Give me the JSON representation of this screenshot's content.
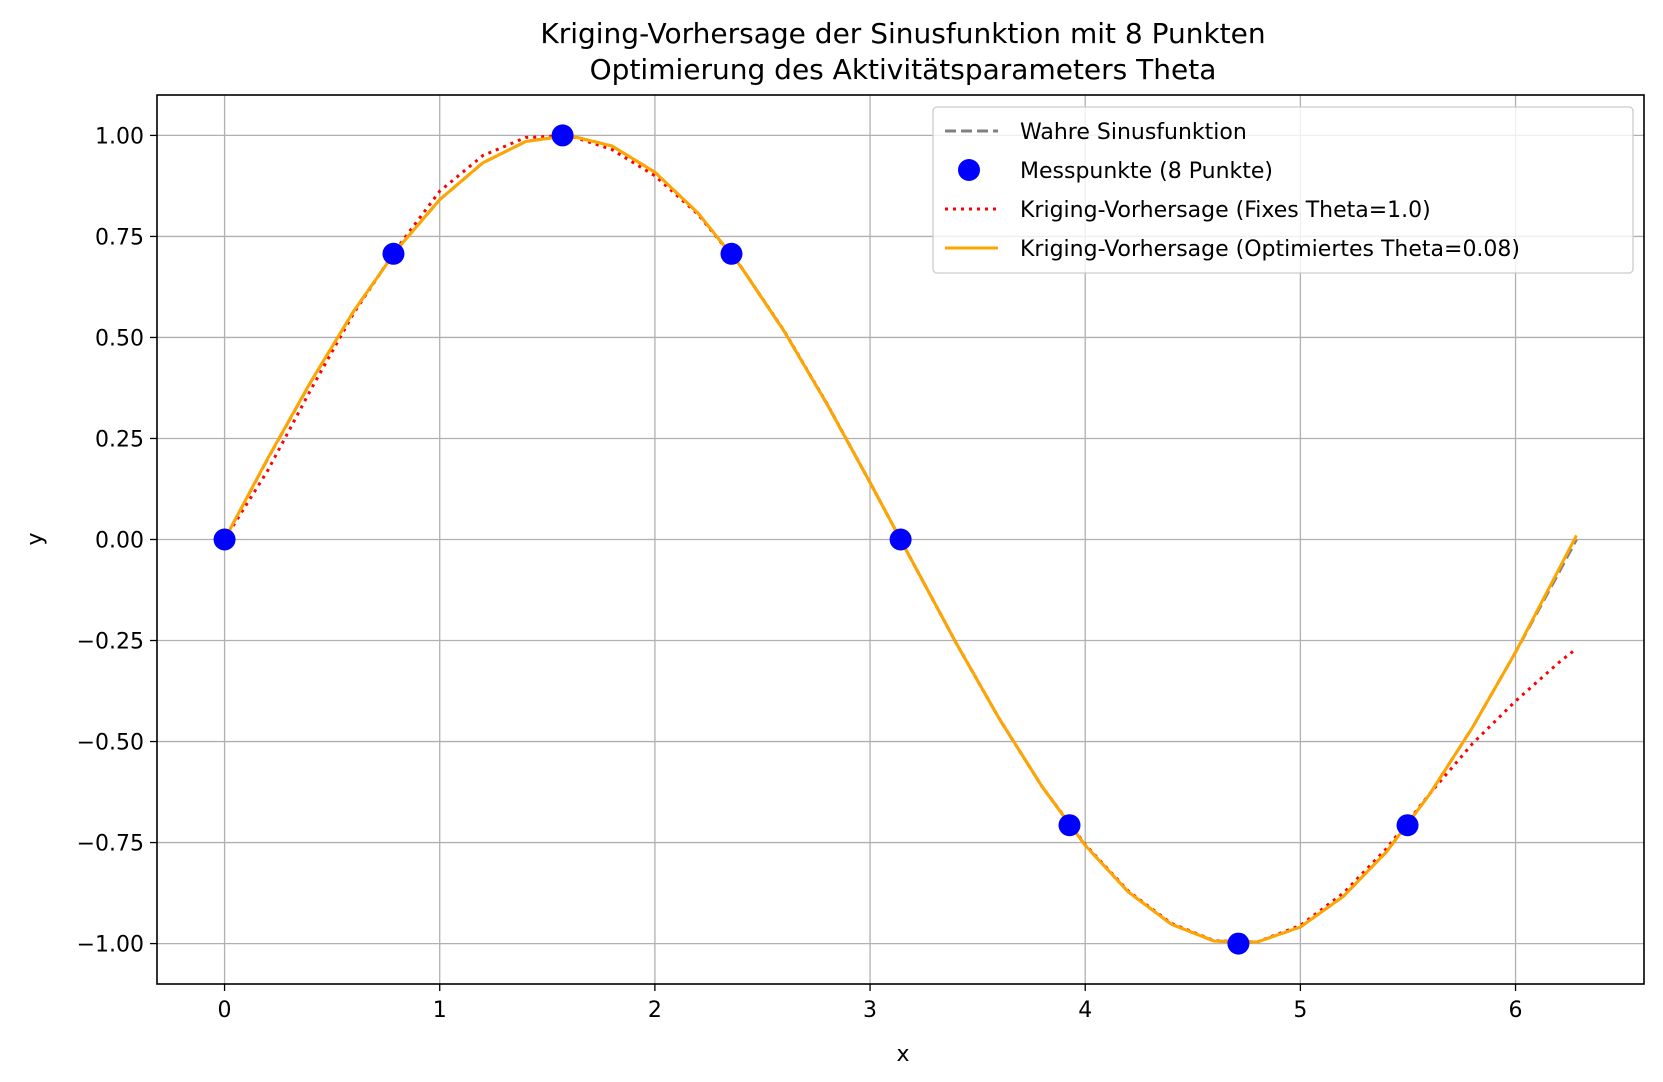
{
  "chart_data": {
    "type": "line",
    "title": "Kriging-Vorhersage der Sinusfunktion mit 8 Punkten",
    "subtitle": "Optimierung des Aktivitätsparameters Theta",
    "xlabel": "x",
    "ylabel": "y",
    "xlim": [
      -0.314,
      6.597
    ],
    "ylim": [
      -1.1,
      1.1
    ],
    "xticks": [
      0,
      1,
      2,
      3,
      4,
      5,
      6
    ],
    "xtick_labels": [
      "0",
      "1",
      "2",
      "3",
      "4",
      "5",
      "6"
    ],
    "yticks": [
      1.0,
      0.75,
      0.5,
      0.25,
      0.0,
      -0.25,
      -0.5,
      -0.75,
      -1.0
    ],
    "ytick_labels": [
      "1.00",
      "0.75",
      "0.50",
      "0.25",
      "0.00",
      "−0.25",
      "−0.50",
      "−0.75",
      "−1.00"
    ],
    "grid": true,
    "legend_position": "top-right",
    "series": [
      {
        "name": "Wahre Sinusfunktion",
        "kind": "line",
        "style": "dashed",
        "color": "#808080",
        "x": [
          0,
          0.2,
          0.4,
          0.6,
          0.8,
          1.0,
          1.2,
          1.4,
          1.6,
          1.8,
          2.0,
          2.2,
          2.4,
          2.6,
          2.8,
          3.0,
          3.2,
          3.4,
          3.6,
          3.8,
          4.0,
          4.2,
          4.4,
          4.6,
          4.8,
          5.0,
          5.2,
          5.4,
          5.6,
          5.8,
          6.0,
          6.2,
          6.283
        ],
        "y": [
          0.0,
          0.199,
          0.389,
          0.565,
          0.717,
          0.841,
          0.932,
          0.985,
          1.0,
          0.974,
          0.909,
          0.808,
          0.675,
          0.516,
          0.335,
          0.141,
          -0.058,
          -0.256,
          -0.443,
          -0.612,
          -0.757,
          -0.872,
          -0.952,
          -0.994,
          -0.996,
          -0.959,
          -0.883,
          -0.773,
          -0.631,
          -0.465,
          -0.279,
          -0.083,
          0.0
        ]
      },
      {
        "name": "Messpunkte (8 Punkte)",
        "kind": "scatter",
        "color": "#0000ff",
        "x": [
          0.0,
          0.785,
          1.571,
          2.356,
          3.142,
          3.927,
          4.712,
          5.498
        ],
        "y": [
          0.0,
          0.707,
          1.0,
          0.707,
          0.0,
          -0.707,
          -1.0,
          -0.707
        ]
      },
      {
        "name": "Kriging-Vorhersage (Fixes Theta=1.0)",
        "kind": "line",
        "style": "dotted",
        "color": "#ff0000",
        "x": [
          0,
          0.2,
          0.4,
          0.6,
          0.8,
          1.0,
          1.2,
          1.4,
          1.6,
          1.8,
          2.0,
          2.2,
          2.4,
          2.6,
          2.8,
          3.0,
          3.2,
          3.4,
          3.6,
          3.8,
          4.0,
          4.2,
          4.4,
          4.6,
          4.8,
          5.0,
          5.2,
          5.4,
          5.6,
          5.8,
          6.0,
          6.2,
          6.283
        ],
        "y": [
          0.0,
          0.17,
          0.37,
          0.56,
          0.72,
          0.862,
          0.95,
          0.995,
          1.0,
          0.965,
          0.9,
          0.805,
          0.675,
          0.517,
          0.336,
          0.141,
          -0.058,
          -0.256,
          -0.443,
          -0.612,
          -0.755,
          -0.87,
          -0.95,
          -0.993,
          -0.996,
          -0.955,
          -0.875,
          -0.765,
          -0.63,
          -0.505,
          -0.4,
          -0.305,
          -0.27
        ]
      },
      {
        "name": "Kriging-Vorhersage (Optimiertes Theta=0.08)",
        "kind": "line",
        "style": "solid",
        "color": "#ffa500",
        "x": [
          0,
          0.2,
          0.4,
          0.6,
          0.8,
          1.0,
          1.2,
          1.4,
          1.6,
          1.8,
          2.0,
          2.2,
          2.4,
          2.6,
          2.8,
          3.0,
          3.2,
          3.4,
          3.6,
          3.8,
          4.0,
          4.2,
          4.4,
          4.6,
          4.8,
          5.0,
          5.2,
          5.4,
          5.6,
          5.8,
          6.0,
          6.2,
          6.283
        ],
        "y": [
          0.0,
          0.2,
          0.39,
          0.565,
          0.717,
          0.841,
          0.932,
          0.985,
          1.0,
          0.974,
          0.909,
          0.808,
          0.675,
          0.516,
          0.335,
          0.141,
          -0.058,
          -0.256,
          -0.443,
          -0.612,
          -0.757,
          -0.872,
          -0.952,
          -0.994,
          -0.996,
          -0.959,
          -0.883,
          -0.773,
          -0.631,
          -0.465,
          -0.279,
          -0.075,
          0.01
        ]
      }
    ]
  }
}
